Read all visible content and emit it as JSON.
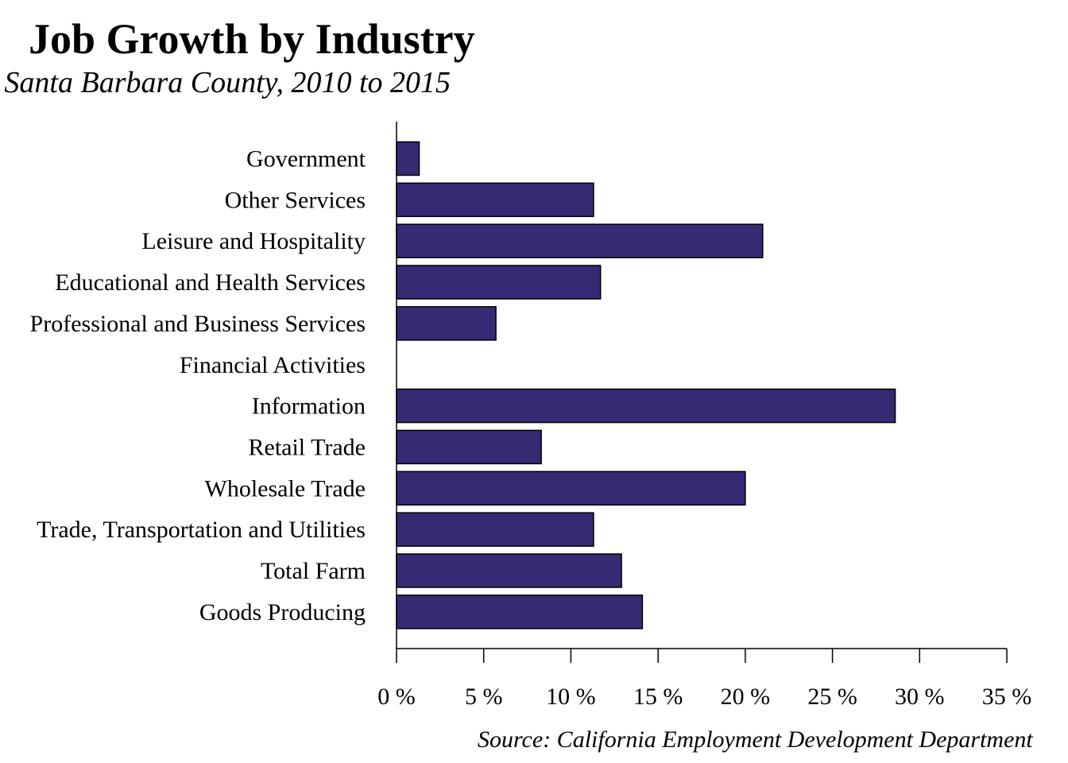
{
  "chart_data": {
    "type": "bar",
    "orientation": "horizontal",
    "title": "Job Growth by Industry",
    "subtitle": "Santa Barbara County, 2010 to 2015",
    "source": "Source: California Employment Development Department",
    "xlabel": "",
    "ylabel": "",
    "categories": [
      "Government",
      "Other Services",
      "Leisure and Hospitality",
      "Educational and Health Services",
      "Professional and Business Services",
      "Financial Activities",
      "Information",
      "Retail Trade",
      "Wholesale Trade",
      "Trade, Transportation and Utilities",
      "Total Farm",
      "Goods Producing"
    ],
    "values": [
      1.3,
      11.3,
      21.0,
      11.7,
      5.7,
      0,
      28.6,
      8.3,
      20.0,
      11.3,
      12.9,
      14.1
    ],
    "xlim": [
      0,
      35
    ],
    "x_ticks": [
      0,
      5,
      10,
      15,
      20,
      25,
      30,
      35
    ],
    "x_tick_labels": [
      "0 %",
      "5 %",
      "10 %",
      "15 %",
      "20 %",
      "25 %",
      "30 %",
      "35 %"
    ],
    "bar_color": "#372a74",
    "bar_edge_color": "#000000",
    "grid": false,
    "legend": "none"
  }
}
